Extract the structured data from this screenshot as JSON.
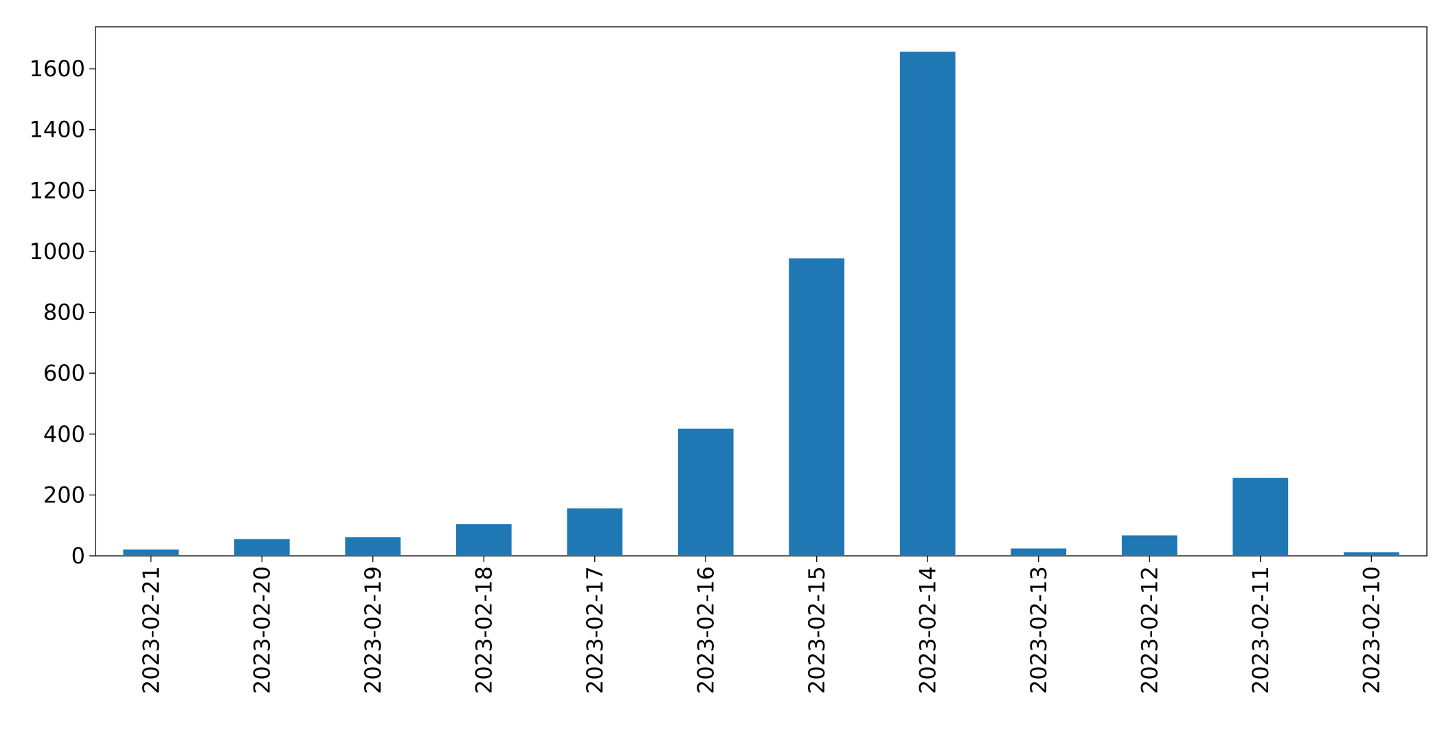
{
  "chart_data": {
    "type": "bar",
    "categories": [
      "2023-02-21",
      "2023-02-20",
      "2023-02-19",
      "2023-02-18",
      "2023-02-17",
      "2023-02-16",
      "2023-02-15",
      "2023-02-14",
      "2023-02-13",
      "2023-02-12",
      "2023-02-11",
      "2023-02-10"
    ],
    "values": [
      21,
      55,
      61,
      104,
      156,
      418,
      977,
      1656,
      24,
      67,
      256,
      12
    ],
    "color": "#1f77b4",
    "ylim": [
      0,
      1738
    ],
    "yticks": [
      0,
      200,
      400,
      600,
      800,
      1000,
      1200,
      1400,
      1600
    ],
    "grid": false
  }
}
